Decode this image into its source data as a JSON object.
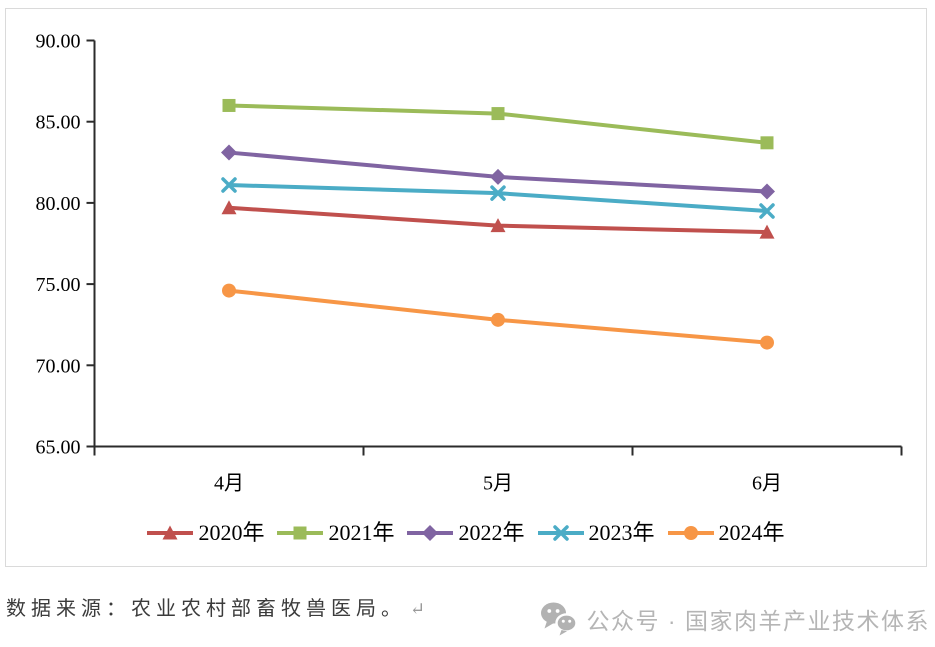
{
  "chart_data": {
    "type": "line",
    "categories": [
      "4月",
      "5月",
      "6月"
    ],
    "series": [
      {
        "name": "2020年",
        "color": "#C0504D",
        "marker": "triangle",
        "values": [
          79.7,
          78.6,
          78.2
        ]
      },
      {
        "name": "2021年",
        "color": "#9BBB59",
        "marker": "square",
        "values": [
          86.0,
          85.5,
          83.7
        ]
      },
      {
        "name": "2022年",
        "color": "#8064A2",
        "marker": "diamond",
        "values": [
          83.1,
          81.6,
          80.7
        ]
      },
      {
        "name": "2023年",
        "color": "#4BACC6",
        "marker": "x",
        "values": [
          81.1,
          80.6,
          79.5
        ]
      },
      {
        "name": "2024年",
        "color": "#F79646",
        "marker": "circle",
        "values": [
          74.6,
          72.8,
          71.4
        ]
      }
    ],
    "title": "",
    "xlabel": "",
    "ylabel": "",
    "ylim": [
      65,
      90
    ],
    "y_ticks": [
      "65.00",
      "70.00",
      "75.00",
      "80.00",
      "85.00",
      "90.00"
    ],
    "grid": false,
    "legend_position": "bottom"
  },
  "footer": {
    "source_text": "数据来源：农业农村部畜牧兽医局。",
    "return_mark": "↵",
    "watermark_text": "公众号 · 国家肉羊产业技术体系"
  },
  "colors": {
    "axis": "#2b2b2b",
    "frame_border": "#dadada",
    "source_text": "#3b3b3b",
    "watermark": "#b5b5b5"
  }
}
